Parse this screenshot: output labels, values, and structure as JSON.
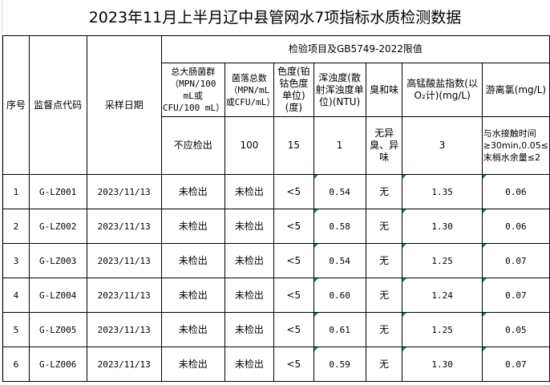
{
  "title": "2023年11月上半月辽中县管网水7项指标水质检测数据",
  "headers": {
    "seq": "序号",
    "site": "监督点代码",
    "date": "采样日期",
    "group": "检验项目及GB5749-2022限值",
    "items": [
      "总大肠菌群（MPN/100 mL或 CFU/100 mL）",
      "菌落总数（MPN/mL或CFU/mL）",
      "色度(铂钴色度单位)(度)",
      "浑浊度(散射浑浊度单位)(NTU)",
      "臭和味",
      "高锰酸盐指数(以O₂计)(mg/L)",
      "游离氯(mg/L)"
    ],
    "limits": [
      "不应检出",
      "100",
      "15",
      "1",
      "无异臭、异味",
      "3",
      "与水接触时间≥30min,0.05≤末梢水余量≤2"
    ]
  },
  "rows": [
    [
      "1",
      "G-LZ001",
      "2023/11/13",
      "未检出",
      "未检出",
      "<5",
      "0.54",
      "无",
      "1.35",
      "0.06"
    ],
    [
      "2",
      "G-LZ002",
      "2023/11/13",
      "未检出",
      "未检出",
      "<5",
      "0.58",
      "无",
      "1.30",
      "0.06"
    ],
    [
      "3",
      "G-LZ003",
      "2023/11/13",
      "未检出",
      "未检出",
      "<5",
      "0.54",
      "无",
      "1.25",
      "0.07"
    ],
    [
      "4",
      "G-LZ004",
      "2023/11/13",
      "未检出",
      "未检出",
      "<5",
      "0.60",
      "无",
      "1.24",
      "0.07"
    ],
    [
      "5",
      "G-LZ005",
      "2023/11/13",
      "未检出",
      "未检出",
      "<5",
      "0.61",
      "无",
      "1.25",
      "0.05"
    ],
    [
      "6",
      "G-LZ006",
      "2023/11/13",
      "未检出",
      "未检出",
      "<5",
      "0.59",
      "无",
      "1.30",
      "0.07"
    ]
  ]
}
